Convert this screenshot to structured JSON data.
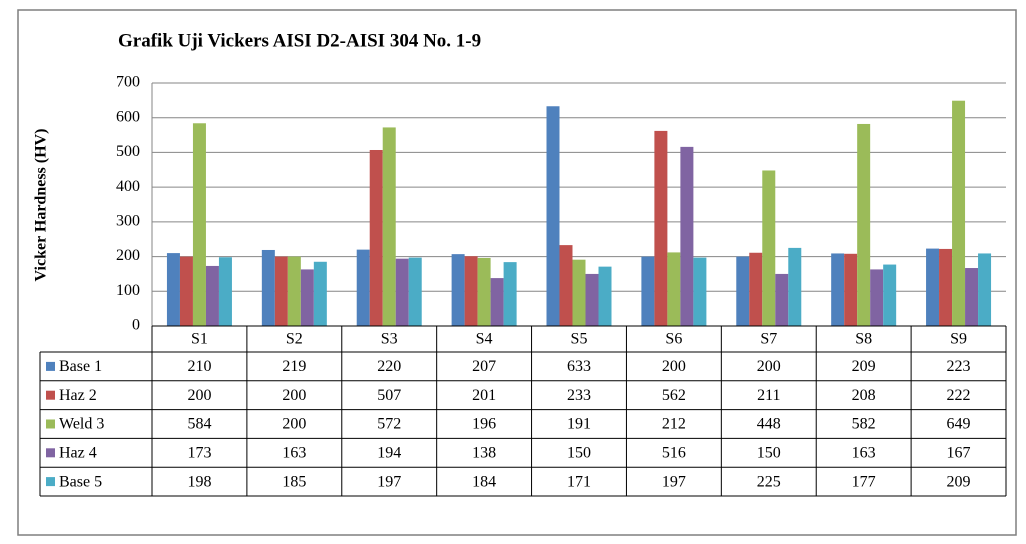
{
  "chart_data": {
    "type": "bar",
    "title": "Grafik Uji Vickers  AISI D2-AISI 304 No.  1-9",
    "y_label": "Vicker Hardness (HV)",
    "categories": [
      "S1",
      "S2",
      "S3",
      "S4",
      "S5",
      "S6",
      "S7",
      "S8",
      "S9"
    ],
    "series": [
      {
        "name": "Base 1",
        "color": "#4f81bd",
        "values": [
          210,
          219,
          220,
          207,
          633,
          200,
          200,
          209,
          223
        ]
      },
      {
        "name": "Haz 2",
        "color": "#c0504d",
        "values": [
          200,
          200,
          507,
          201,
          233,
          562,
          211,
          208,
          222
        ]
      },
      {
        "name": "Weld 3",
        "color": "#9bbb59",
        "values": [
          584,
          200,
          572,
          196,
          191,
          212,
          448,
          582,
          649
        ]
      },
      {
        "name": "Haz 4",
        "color": "#8064a2",
        "values": [
          173,
          163,
          194,
          138,
          150,
          516,
          150,
          163,
          167
        ]
      },
      {
        "name": "Base 5",
        "color": "#4bacc6",
        "values": [
          198,
          185,
          197,
          184,
          171,
          197,
          225,
          177,
          209
        ]
      }
    ],
    "ylim": [
      0,
      700
    ],
    "yticks": [
      0,
      100,
      200,
      300,
      400,
      500,
      600,
      700
    ],
    "grid": true,
    "legend": "table"
  }
}
